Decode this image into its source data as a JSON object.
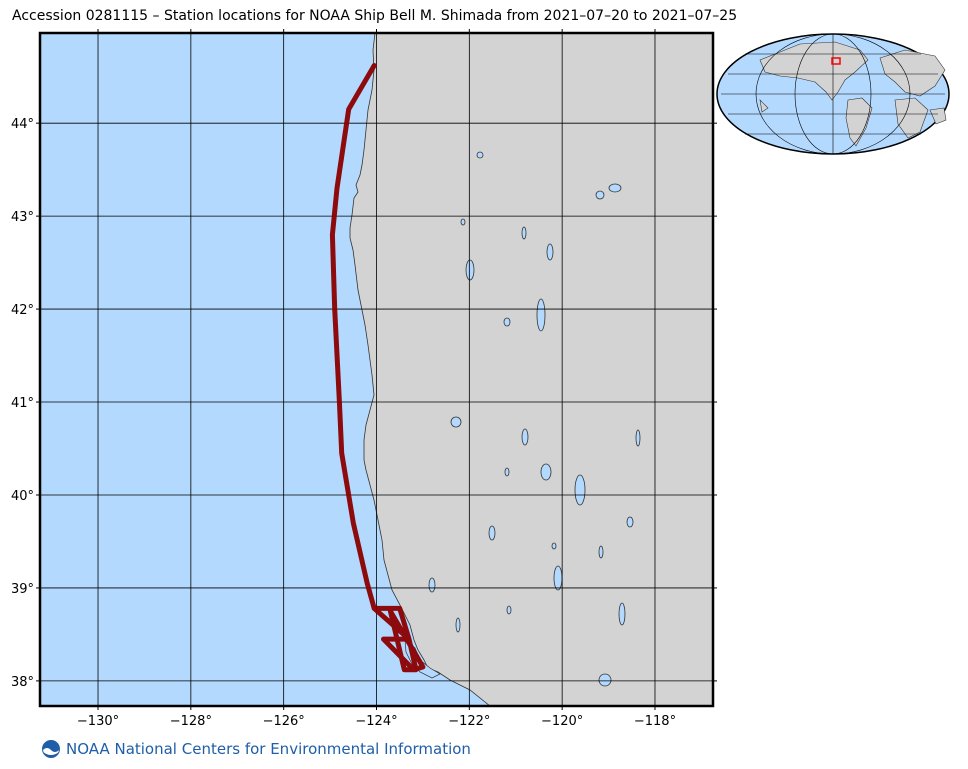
{
  "title": "Accession 0281115 – Station locations for NOAA Ship Bell M. Shimada from 2021–07–20 to 2021–07–25",
  "footer": {
    "org_name": "NOAA National Centers for Environmental Information",
    "logo_icon": "noaa-logo-icon"
  },
  "map": {
    "lon_range": [
      -131.25,
      -116.75
    ],
    "lat_range": [
      37.73,
      44.97
    ],
    "lon_ticks": [
      -130,
      -128,
      -126,
      -124,
      -122,
      -120,
      -118
    ],
    "lon_tick_labels": [
      "−130°",
      "−128°",
      "−126°",
      "−124°",
      "−122°",
      "−120°",
      "−118°"
    ],
    "lat_ticks": [
      38,
      39,
      40,
      41,
      42,
      43,
      44
    ],
    "lat_tick_labels": [
      "38°",
      "39°",
      "40°",
      "41°",
      "42°",
      "43°",
      "44°"
    ],
    "colors": {
      "ocean": "#b3d9ff",
      "land": "#d3d3d3",
      "track": "#8b0000",
      "grid": "#000000"
    },
    "ship_track": [
      [
        -124.05,
        44.62
      ],
      [
        -124.6,
        44.15
      ],
      [
        -124.85,
        43.3
      ],
      [
        -124.95,
        42.8
      ],
      [
        -124.9,
        42.0
      ],
      [
        -124.8,
        41.0
      ],
      [
        -124.75,
        40.45
      ],
      [
        -124.5,
        39.7
      ],
      [
        -124.2,
        39.05
      ],
      [
        -124.05,
        38.78
      ],
      [
        -123.5,
        38.78
      ],
      [
        -123.3,
        38.45
      ],
      [
        -123.15,
        38.12
      ],
      [
        -123.4,
        38.12
      ],
      [
        -123.7,
        38.75
      ],
      [
        -123.35,
        38.45
      ],
      [
        -123.0,
        38.15
      ],
      [
        -123.2,
        38.12
      ],
      [
        -123.85,
        38.45
      ],
      [
        -123.3,
        38.45
      ],
      [
        -124.05,
        38.78
      ]
    ]
  },
  "inset": {
    "description_icon": "world-inset-map-icon",
    "colors": {
      "ocean": "#b3d9ff",
      "land": "#d3d3d3",
      "highlight": "#ff0000"
    }
  }
}
